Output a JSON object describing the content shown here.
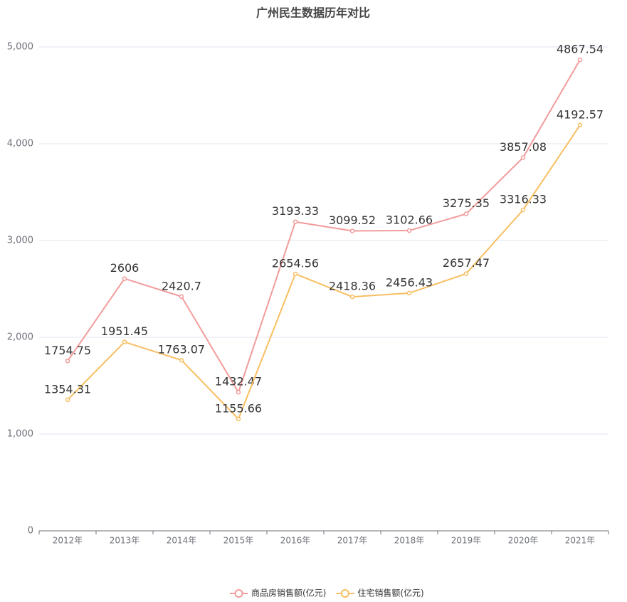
{
  "chart_data": {
    "type": "line",
    "title": "广州民生数据历年对比",
    "categories": [
      "2012年",
      "2013年",
      "2014年",
      "2015年",
      "2016年",
      "2017年",
      "2018年",
      "2019年",
      "2020年",
      "2021年"
    ],
    "series": [
      {
        "name": "商品房销售额(亿元)",
        "color": "#f29b9b",
        "values": [
          1754.75,
          2606,
          2420.7,
          1432.47,
          3193.33,
          3099.52,
          3102.66,
          3275.35,
          3857.08,
          4867.54
        ]
      },
      {
        "name": "住宅销售额(亿元)",
        "color": "#f8be62",
        "values": [
          1354.31,
          1951.45,
          1763.07,
          1155.66,
          2654.56,
          2418.36,
          2456.43,
          2657.47,
          3316.33,
          4192.57
        ]
      }
    ],
    "ylim": [
      0,
      5000
    ],
    "yticks": [
      0,
      {
        "value": 1000,
        "label": "1,000"
      },
      {
        "value": 2000,
        "label": "2,000"
      },
      {
        "value": 3000,
        "label": "3,000"
      },
      {
        "value": 4000,
        "label": "4,000"
      },
      {
        "value": 5000,
        "label": "5,000"
      }
    ],
    "grid": true
  }
}
